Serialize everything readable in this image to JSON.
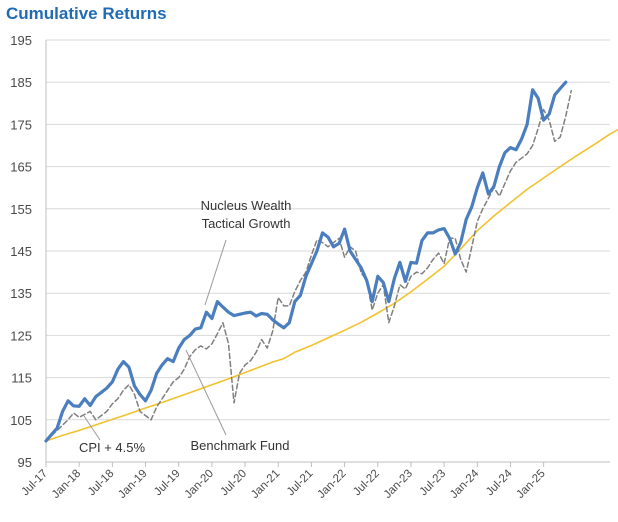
{
  "chart_data": {
    "type": "line",
    "title": "Cumulative Returns",
    "xlabel": "",
    "ylabel": "",
    "ylim": [
      95,
      195
    ],
    "yticks": [
      95,
      105,
      115,
      125,
      135,
      145,
      155,
      165,
      175,
      185,
      195
    ],
    "x_start": "Jul-17",
    "x_end": "Jan-26",
    "xtick_labels": [
      "Jul-17",
      "Jan-18",
      "Jul-18",
      "Jan-19",
      "Jul-19",
      "Jan-20",
      "Jul-20",
      "Jan-21",
      "Jul-21",
      "Jan-22",
      "Jul-22",
      "Jan-23",
      "Jul-23",
      "Jan-24",
      "Jul-24",
      "Jan-25"
    ],
    "grid": "horizontal",
    "legend": "none",
    "series": [
      {
        "name": "CPI + 4.5%",
        "color": "#f2c12e",
        "style": "solid",
        "points": [
          [
            0,
            100
          ],
          [
            3,
            101.3
          ],
          [
            6,
            102.5
          ],
          [
            9,
            103.8
          ],
          [
            12,
            105.1
          ],
          [
            15,
            106.4
          ],
          [
            18,
            107.8
          ],
          [
            21,
            109.1
          ],
          [
            24,
            110.5
          ],
          [
            27,
            111.9
          ],
          [
            30,
            113.3
          ],
          [
            33,
            114.7
          ],
          [
            36,
            116.2
          ],
          [
            39,
            117.7
          ],
          [
            41,
            118.7
          ],
          [
            43,
            119.5
          ],
          [
            45,
            121
          ],
          [
            48,
            122.6
          ],
          [
            51,
            124.4
          ],
          [
            54,
            126.2
          ],
          [
            57,
            128.1
          ],
          [
            60,
            130.3
          ],
          [
            63,
            132.6
          ],
          [
            66,
            135.3
          ],
          [
            69,
            138.3
          ],
          [
            72,
            141.4
          ],
          [
            75,
            145.5
          ],
          [
            78,
            149.8
          ],
          [
            81,
            153.3
          ],
          [
            84,
            156.5
          ],
          [
            87,
            159.6
          ],
          [
            90,
            162.3
          ],
          [
            93,
            165
          ],
          [
            96,
            167.6
          ],
          [
            99,
            170.1
          ],
          [
            102,
            172.7
          ],
          [
            105,
            174.9
          ],
          [
            108,
            177
          ],
          [
            111,
            179
          ]
        ]
      },
      {
        "name": "Benchmark Fund",
        "color": "#7f7f7f",
        "style": "dashed",
        "points": [
          [
            0,
            100
          ],
          [
            2,
            102.5
          ],
          [
            4,
            105
          ],
          [
            5,
            106.6
          ],
          [
            6,
            105.6
          ],
          [
            8,
            107
          ],
          [
            9,
            105
          ],
          [
            11,
            107
          ],
          [
            12,
            108.8
          ],
          [
            13,
            110
          ],
          [
            14,
            112
          ],
          [
            15,
            113.3
          ],
          [
            16,
            111
          ],
          [
            17,
            107
          ],
          [
            18,
            106
          ],
          [
            19,
            105
          ],
          [
            20,
            108
          ],
          [
            21,
            110
          ],
          [
            22,
            112
          ],
          [
            23,
            114
          ],
          [
            24,
            115
          ],
          [
            25,
            117
          ],
          [
            26,
            120
          ],
          [
            27,
            121.6
          ],
          [
            28,
            122.5
          ],
          [
            29,
            121.8
          ],
          [
            30,
            123
          ],
          [
            31,
            125.4
          ],
          [
            32,
            128
          ],
          [
            33,
            123
          ],
          [
            34,
            109
          ],
          [
            35,
            116
          ],
          [
            36,
            118
          ],
          [
            37,
            119
          ],
          [
            38,
            121
          ],
          [
            39,
            124
          ],
          [
            40,
            122
          ],
          [
            41,
            126
          ],
          [
            42,
            134
          ],
          [
            43,
            132
          ],
          [
            44,
            132
          ],
          [
            45,
            135.4
          ],
          [
            46,
            138
          ],
          [
            47,
            140
          ],
          [
            48,
            144
          ],
          [
            49,
            147.6
          ],
          [
            50,
            147
          ],
          [
            51,
            146
          ],
          [
            52,
            147
          ],
          [
            53,
            148
          ],
          [
            54,
            143.5
          ],
          [
            55,
            146
          ],
          [
            56,
            145
          ],
          [
            57,
            139.8
          ],
          [
            58,
            138
          ],
          [
            59,
            131
          ],
          [
            60,
            135
          ],
          [
            61,
            137
          ],
          [
            62,
            128
          ],
          [
            63,
            132
          ],
          [
            64,
            137
          ],
          [
            65,
            136
          ],
          [
            66,
            139
          ],
          [
            67,
            140
          ],
          [
            68,
            139.6
          ],
          [
            69,
            141
          ],
          [
            70,
            143
          ],
          [
            71,
            144.5
          ],
          [
            72,
            142
          ],
          [
            73,
            148
          ],
          [
            74,
            148
          ],
          [
            75,
            143
          ],
          [
            76,
            140
          ],
          [
            77,
            146
          ],
          [
            78,
            152
          ],
          [
            79,
            155
          ],
          [
            80,
            157.5
          ],
          [
            81,
            160
          ],
          [
            82,
            158
          ],
          [
            83,
            161
          ],
          [
            84,
            164
          ],
          [
            85,
            166
          ],
          [
            86,
            167
          ],
          [
            87,
            168
          ],
          [
            88,
            170
          ],
          [
            89,
            174
          ],
          [
            90,
            178.5
          ],
          [
            91,
            176
          ],
          [
            92,
            171
          ],
          [
            93,
            172
          ],
          [
            94,
            177
          ],
          [
            95,
            183
          ]
        ]
      },
      {
        "name": "Nucleus Wealth Tactical Growth",
        "color": "#4a7ebf",
        "style": "solid-thick",
        "points": [
          [
            0,
            100
          ],
          [
            1,
            101.5
          ],
          [
            2,
            103
          ],
          [
            3,
            107
          ],
          [
            4,
            109.5
          ],
          [
            5,
            108.3
          ],
          [
            6,
            108.2
          ],
          [
            7,
            110
          ],
          [
            8,
            108.4
          ],
          [
            9,
            110.5
          ],
          [
            10,
            111.5
          ],
          [
            11,
            112.5
          ],
          [
            12,
            114
          ],
          [
            13,
            117
          ],
          [
            14,
            118.8
          ],
          [
            15,
            117.5
          ],
          [
            16,
            113
          ],
          [
            17,
            111
          ],
          [
            18,
            109.5
          ],
          [
            19,
            112
          ],
          [
            20,
            116
          ],
          [
            21,
            118
          ],
          [
            22,
            119.5
          ],
          [
            23,
            118.8
          ],
          [
            24,
            122
          ],
          [
            25,
            124
          ],
          [
            26,
            125
          ],
          [
            27,
            126.5
          ],
          [
            28,
            126.8
          ],
          [
            29,
            130.5
          ],
          [
            30,
            129
          ],
          [
            31,
            133
          ],
          [
            32,
            131.7
          ],
          [
            33,
            130.5
          ],
          [
            34,
            129.7
          ],
          [
            35,
            130
          ],
          [
            36,
            130.3
          ],
          [
            37,
            130.5
          ],
          [
            38,
            129.6
          ],
          [
            39,
            130.2
          ],
          [
            40,
            130
          ],
          [
            41,
            128.7
          ],
          [
            42,
            127.7
          ],
          [
            43,
            126.8
          ],
          [
            44,
            128
          ],
          [
            45,
            133
          ],
          [
            46,
            134.5
          ],
          [
            47,
            139
          ],
          [
            48,
            142
          ],
          [
            49,
            145
          ],
          [
            50,
            149.3
          ],
          [
            51,
            148.3
          ],
          [
            52,
            146
          ],
          [
            53,
            146.8
          ],
          [
            54,
            150.2
          ],
          [
            55,
            145
          ],
          [
            56,
            143
          ],
          [
            57,
            141
          ],
          [
            58,
            138
          ],
          [
            59,
            133
          ],
          [
            60,
            139
          ],
          [
            61,
            137.5
          ],
          [
            62,
            133
          ],
          [
            63,
            138.5
          ],
          [
            64,
            142.3
          ],
          [
            65,
            137.8
          ],
          [
            66,
            142.3
          ],
          [
            67,
            142.1
          ],
          [
            68,
            147.5
          ],
          [
            69,
            149.3
          ],
          [
            70,
            149.3
          ],
          [
            71,
            150
          ],
          [
            72,
            150.3
          ],
          [
            73,
            148
          ],
          [
            74,
            144.3
          ],
          [
            75,
            147
          ],
          [
            76,
            152.5
          ],
          [
            77,
            155.5
          ],
          [
            78,
            160
          ],
          [
            79,
            163.5
          ],
          [
            80,
            158.5
          ],
          [
            81,
            160.3
          ],
          [
            82,
            165
          ],
          [
            83,
            168.3
          ],
          [
            84,
            169.5
          ],
          [
            85,
            169
          ],
          [
            86,
            171.5
          ],
          [
            87,
            175
          ],
          [
            88,
            183.2
          ],
          [
            89,
            181.2
          ],
          [
            90,
            176
          ],
          [
            91,
            177.5
          ],
          [
            92,
            182
          ],
          [
            93,
            183.5
          ],
          [
            94,
            185
          ]
        ]
      }
    ],
    "annotations": [
      {
        "id": "nucleus",
        "lines": [
          "Nucleus Wealth",
          "Tactical Growth"
        ]
      },
      {
        "id": "benchmark",
        "lines": [
          "Benchmark Fund"
        ]
      },
      {
        "id": "cpi",
        "lines": [
          "CPI + 4.5%"
        ]
      }
    ]
  }
}
